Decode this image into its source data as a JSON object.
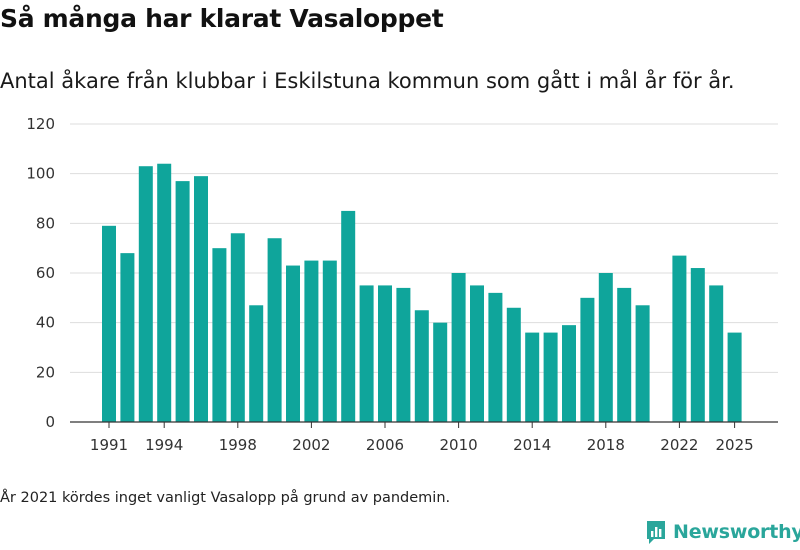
{
  "header": {
    "title": "Så många har klarat Vasaloppet",
    "subtitle": "Antal åkare från klubbar i Eskilstuna kommun som gått i mål år för år."
  },
  "footer": {
    "note": "År 2021 kördes inget vanligt Vasalopp på grund av pandemin.",
    "logo_text": "Newsworthy",
    "logo_icon": "newsworthy-chart-icon"
  },
  "colors": {
    "bar": "#0fa59b",
    "grid": "#dddddd",
    "axis": "#333333",
    "brand": "#2aa69b"
  },
  "chart_data": {
    "type": "bar",
    "title": "Så många har klarat Vasaloppet",
    "subtitle": "Antal åkare från klubbar i Eskilstuna kommun som gått i mål år för år.",
    "x": [
      1991,
      1992,
      1993,
      1994,
      1995,
      1996,
      1997,
      1998,
      1999,
      2000,
      2001,
      2002,
      2003,
      2004,
      2005,
      2006,
      2007,
      2008,
      2009,
      2010,
      2011,
      2012,
      2013,
      2014,
      2015,
      2016,
      2017,
      2018,
      2019,
      2020,
      2021,
      2022,
      2023,
      2024,
      2025
    ],
    "values": [
      79,
      68,
      103,
      104,
      97,
      99,
      70,
      76,
      47,
      74,
      63,
      65,
      65,
      85,
      55,
      55,
      54,
      45,
      40,
      60,
      55,
      52,
      46,
      36,
      36,
      39,
      50,
      60,
      54,
      47,
      null,
      67,
      62,
      55,
      36
    ],
    "x_ticks": [
      1991,
      1994,
      1998,
      2002,
      2006,
      2010,
      2014,
      2018,
      2022,
      2025
    ],
    "ylim": [
      0,
      120
    ],
    "y_ticks": [
      0,
      20,
      40,
      60,
      80,
      100,
      120
    ],
    "grid": true,
    "xlabel": "",
    "ylabel": ""
  }
}
